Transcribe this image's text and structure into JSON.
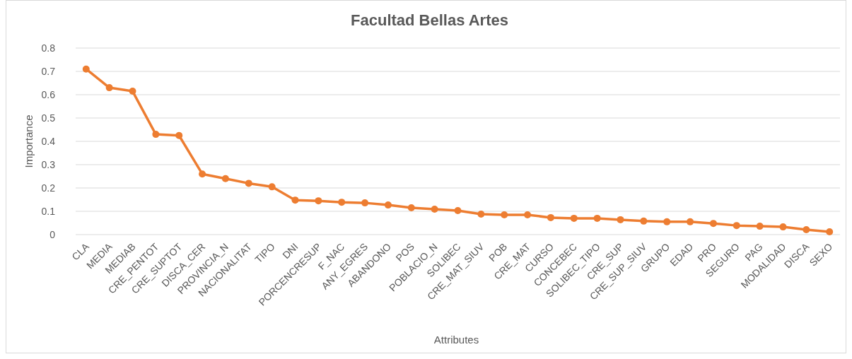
{
  "chart_data": {
    "type": "line",
    "title": "Facultad Bellas Artes",
    "xlabel": "Attributes",
    "ylabel": "Importance",
    "categories": [
      "CLA",
      "MEDIA",
      "MEDIAB",
      "CRE_PENTOT",
      "CRE_SUPTOT",
      "DISCA_CER",
      "PROVINCIA_N",
      "NACIONALITAT",
      "TIPO",
      "DNI",
      "PORCENCRESUP",
      "F_NAC",
      "ANY_EGRES",
      "ABANDONO",
      "POS",
      "POBLACIO_N",
      "SOLIBEC",
      "CRE_MAT_SIUV",
      "POB",
      "CRE_MAT",
      "CURSO",
      "CONCEBEC",
      "SOLIBEC_TIPO",
      "CRE_SUP",
      "CRE_SUP_SIUV",
      "GRUPO",
      "EDAD",
      "PRO",
      "SEGURO",
      "PAG",
      "MODALIDAD",
      "DISCA",
      "SEXO"
    ],
    "series": [
      {
        "color": "#ed7d31",
        "values": [
          0.71,
          0.63,
          0.615,
          0.43,
          0.425,
          0.26,
          0.24,
          0.22,
          0.205,
          0.148,
          0.145,
          0.139,
          0.136,
          0.127,
          0.115,
          0.109,
          0.103,
          0.088,
          0.085,
          0.085,
          0.073,
          0.07,
          0.07,
          0.064,
          0.058,
          0.055,
          0.055,
          0.048,
          0.039,
          0.036,
          0.033,
          0.021,
          0.012
        ]
      }
    ],
    "ylim": [
      0,
      0.8
    ],
    "yticks": [
      0,
      0.1,
      0.2,
      0.3,
      0.4,
      0.5,
      0.6,
      0.7,
      0.8
    ],
    "grid": "y",
    "marker": "circle",
    "line_style": "solid"
  }
}
